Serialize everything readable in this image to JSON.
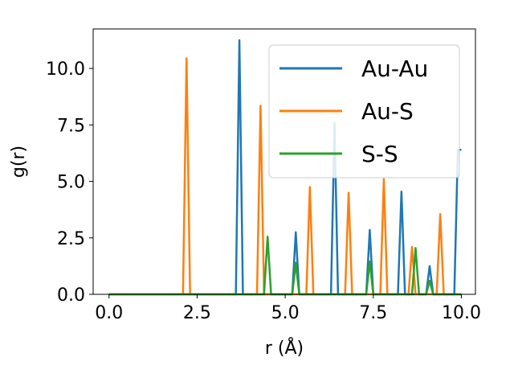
{
  "chart_data": {
    "type": "line",
    "xlabel": "r (Å)",
    "ylabel": "g(r)",
    "xlim": [
      -0.45,
      10.4
    ],
    "ylim": [
      0,
      11.75
    ],
    "xticks": [
      0.0,
      2.5,
      5.0,
      7.5,
      10.0
    ],
    "xtick_labels": [
      "0.0",
      "2.5",
      "5.0",
      "7.5",
      "10.0"
    ],
    "yticks": [
      0.0,
      2.5,
      5.0,
      7.5,
      10.0
    ],
    "ytick_labels": [
      "0.0",
      "2.5",
      "5.0",
      "7.5",
      "10.0"
    ],
    "grid": false,
    "legend_position": "top-right",
    "series": [
      {
        "name": "Au-Au",
        "color": "#1f77b4",
        "x": [
          0,
          3.6,
          3.7,
          3.8,
          5.2,
          5.3,
          5.4,
          6.3,
          6.4,
          6.5,
          7.3,
          7.4,
          7.5,
          8.2,
          8.3,
          8.4,
          9.0,
          9.1,
          9.2,
          9.8,
          9.9,
          10.0
        ],
        "y": [
          0,
          0,
          11.25,
          0,
          0,
          2.75,
          0,
          0,
          7.6,
          0,
          0,
          2.85,
          0,
          0,
          4.55,
          0,
          0,
          1.25,
          0,
          0,
          6.4,
          6.4
        ]
      },
      {
        "name": "Au-S",
        "color": "#ff7f0e",
        "x": [
          0,
          2.1,
          2.2,
          2.3,
          4.2,
          4.3,
          4.4,
          5.6,
          5.7,
          5.8,
          6.7,
          6.8,
          6.9,
          7.7,
          7.8,
          7.9,
          8.5,
          8.6,
          8.7,
          9.3,
          9.4,
          9.5,
          10.0
        ],
        "y": [
          0,
          0,
          10.45,
          0,
          0,
          8.35,
          0,
          0,
          4.75,
          0,
          0,
          4.5,
          0,
          0,
          5.1,
          0,
          0,
          2.1,
          0,
          0,
          3.55,
          0,
          0
        ]
      },
      {
        "name": "S-S",
        "color": "#2ca02c",
        "x": [
          0,
          4.4,
          4.5,
          4.6,
          5.2,
          5.3,
          5.4,
          7.3,
          7.4,
          7.5,
          8.6,
          8.7,
          8.8,
          9.0,
          9.1,
          9.2,
          10.0
        ],
        "y": [
          0,
          0,
          2.55,
          0,
          0,
          1.4,
          0,
          0,
          1.45,
          0,
          0,
          2.05,
          0,
          0,
          0.6,
          0,
          0
        ]
      }
    ]
  }
}
